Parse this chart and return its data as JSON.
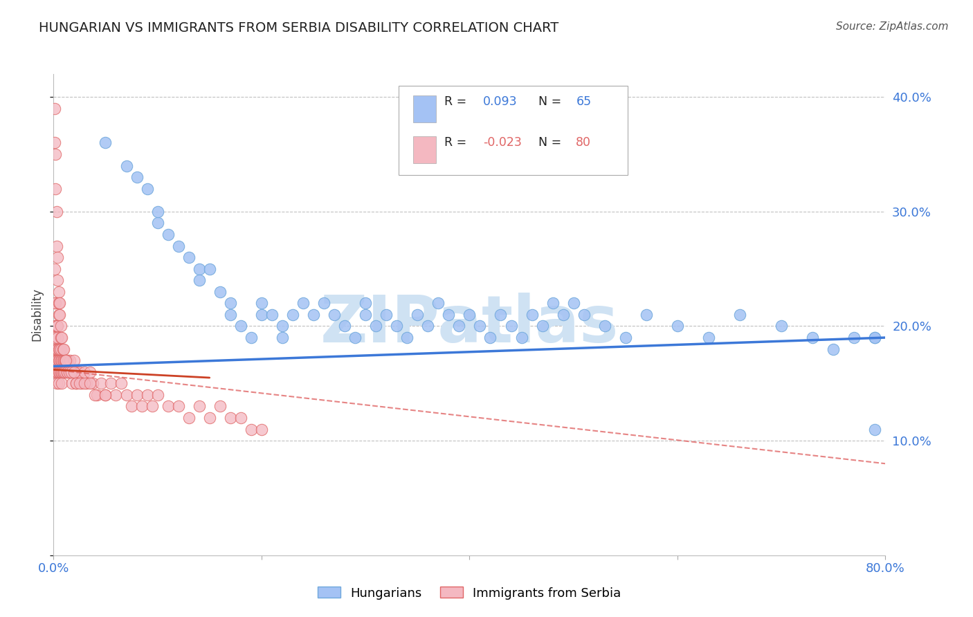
{
  "title": "HUNGARIAN VS IMMIGRANTS FROM SERBIA DISABILITY CORRELATION CHART",
  "source": "Source: ZipAtlas.com",
  "ylabel": "Disability",
  "watermark": "ZIPatlas",
  "xlim": [
    0.0,
    0.8
  ],
  "ylim": [
    0.0,
    0.42
  ],
  "legend_R_hungarian": "0.093",
  "legend_N_hungarian": "65",
  "legend_R_serbia": "-0.023",
  "legend_N_serbia": "80",
  "blue_scatter_color": "#a4c2f4",
  "blue_scatter_edge": "#6fa8dc",
  "pink_scatter_color": "#f4b8c1",
  "pink_scatter_edge": "#e06666",
  "blue_line_color": "#3c78d8",
  "pink_line_color": "#cc4125",
  "pink_dash_color": "#e06666",
  "grid_color": "#c0c0c0",
  "axis_tick_color": "#3c78d8",
  "watermark_color": "#cfe2f3",
  "hungarians_x": [
    0.05,
    0.07,
    0.08,
    0.09,
    0.1,
    0.1,
    0.11,
    0.12,
    0.13,
    0.14,
    0.14,
    0.15,
    0.16,
    0.17,
    0.17,
    0.18,
    0.19,
    0.2,
    0.2,
    0.21,
    0.22,
    0.22,
    0.23,
    0.24,
    0.25,
    0.26,
    0.27,
    0.28,
    0.29,
    0.3,
    0.3,
    0.31,
    0.32,
    0.33,
    0.34,
    0.35,
    0.36,
    0.37,
    0.38,
    0.39,
    0.4,
    0.41,
    0.42,
    0.43,
    0.44,
    0.45,
    0.46,
    0.47,
    0.48,
    0.49,
    0.5,
    0.51,
    0.53,
    0.55,
    0.57,
    0.6,
    0.63,
    0.66,
    0.7,
    0.73,
    0.75,
    0.77,
    0.79,
    0.79,
    0.79
  ],
  "hungarians_y": [
    0.36,
    0.34,
    0.33,
    0.32,
    0.29,
    0.3,
    0.28,
    0.27,
    0.26,
    0.25,
    0.24,
    0.25,
    0.23,
    0.22,
    0.21,
    0.2,
    0.19,
    0.21,
    0.22,
    0.21,
    0.2,
    0.19,
    0.21,
    0.22,
    0.21,
    0.22,
    0.21,
    0.2,
    0.19,
    0.21,
    0.22,
    0.2,
    0.21,
    0.2,
    0.19,
    0.21,
    0.2,
    0.22,
    0.21,
    0.2,
    0.21,
    0.2,
    0.19,
    0.21,
    0.2,
    0.19,
    0.21,
    0.2,
    0.22,
    0.21,
    0.22,
    0.21,
    0.2,
    0.19,
    0.21,
    0.2,
    0.19,
    0.21,
    0.2,
    0.19,
    0.18,
    0.19,
    0.19,
    0.19,
    0.11
  ],
  "serbia_x": [
    0.001,
    0.001,
    0.001,
    0.001,
    0.001,
    0.002,
    0.002,
    0.002,
    0.002,
    0.002,
    0.003,
    0.003,
    0.003,
    0.003,
    0.003,
    0.004,
    0.004,
    0.004,
    0.004,
    0.004,
    0.005,
    0.005,
    0.005,
    0.005,
    0.006,
    0.006,
    0.006,
    0.007,
    0.007,
    0.007,
    0.008,
    0.008,
    0.008,
    0.009,
    0.009,
    0.01,
    0.01,
    0.011,
    0.011,
    0.012,
    0.013,
    0.014,
    0.015,
    0.016,
    0.017,
    0.018,
    0.019,
    0.02,
    0.021,
    0.022,
    0.023,
    0.025,
    0.027,
    0.03,
    0.032,
    0.035,
    0.038,
    0.042,
    0.046,
    0.05,
    0.055,
    0.06,
    0.065,
    0.07,
    0.075,
    0.08,
    0.085,
    0.09,
    0.095,
    0.1,
    0.11,
    0.12,
    0.13,
    0.14,
    0.15,
    0.16,
    0.17,
    0.18,
    0.19,
    0.2
  ],
  "serbia_y": [
    0.25,
    0.22,
    0.2,
    0.19,
    0.17,
    0.22,
    0.2,
    0.18,
    0.17,
    0.16,
    0.2,
    0.18,
    0.17,
    0.16,
    0.15,
    0.2,
    0.19,
    0.18,
    0.17,
    0.16,
    0.18,
    0.17,
    0.16,
    0.15,
    0.18,
    0.17,
    0.16,
    0.18,
    0.17,
    0.16,
    0.17,
    0.16,
    0.15,
    0.17,
    0.16,
    0.17,
    0.16,
    0.17,
    0.16,
    0.17,
    0.16,
    0.17,
    0.16,
    0.17,
    0.16,
    0.15,
    0.16,
    0.17,
    0.16,
    0.15,
    0.16,
    0.16,
    0.15,
    0.16,
    0.15,
    0.16,
    0.15,
    0.14,
    0.15,
    0.14,
    0.15,
    0.14,
    0.15,
    0.14,
    0.13,
    0.14,
    0.13,
    0.14,
    0.13,
    0.14,
    0.13,
    0.13,
    0.12,
    0.13,
    0.12,
    0.13,
    0.12,
    0.12,
    0.11,
    0.11
  ],
  "serbia_x_extra": [
    0.001,
    0.001,
    0.002,
    0.002,
    0.003,
    0.003,
    0.004,
    0.004,
    0.005,
    0.005,
    0.005,
    0.006,
    0.006,
    0.007,
    0.007,
    0.008,
    0.009,
    0.01,
    0.011,
    0.012,
    0.013,
    0.015,
    0.017,
    0.02,
    0.022,
    0.025,
    0.03,
    0.035,
    0.04,
    0.05
  ],
  "serbia_y_extra": [
    0.39,
    0.36,
    0.35,
    0.32,
    0.3,
    0.27,
    0.26,
    0.24,
    0.23,
    0.22,
    0.21,
    0.22,
    0.21,
    0.2,
    0.19,
    0.19,
    0.18,
    0.18,
    0.17,
    0.17,
    0.16,
    0.16,
    0.16,
    0.16,
    0.15,
    0.15,
    0.15,
    0.15,
    0.14,
    0.14
  ]
}
